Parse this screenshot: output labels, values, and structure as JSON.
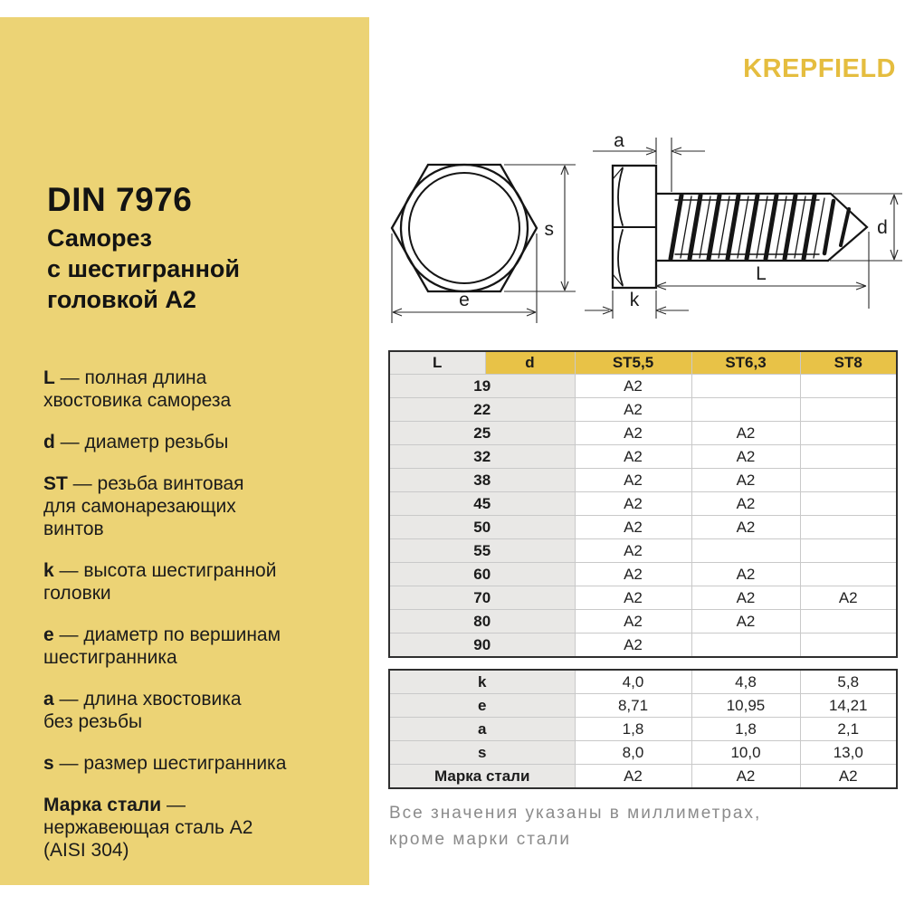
{
  "page": {
    "background": "#FFFFFF"
  },
  "brand": {
    "logo_text": "KREPFIELD",
    "logo_color": "#E5BD3F"
  },
  "sidebar": {
    "background_color": "#ECD375",
    "title": "DIN 7976",
    "subtitle_lines": [
      "Саморез",
      "с шестигранной",
      "головкой А2"
    ],
    "legend": [
      {
        "term": "L",
        "desc": " — полная длина\nхвостовика самореза"
      },
      {
        "term": "d",
        "desc": " — диаметр резьбы"
      },
      {
        "term": "ST",
        "desc": " — резьба винтовая\nдля самонарезающих\nвинтов"
      },
      {
        "term": "k",
        "desc": " — высота шестигранной\nголовки"
      },
      {
        "term": "e",
        "desc": " — диаметр по вершинам\nшестигранника"
      },
      {
        "term": "a",
        "desc": " — длина хвостовика\nбез резьбы"
      },
      {
        "term": "s",
        "desc": " — размер шестигранника"
      },
      {
        "term": "Марка стали",
        "desc": " —\nнержавеющая сталь А2\n(AISI 304)"
      }
    ]
  },
  "diagram": {
    "labels": {
      "s": "s",
      "e": "e",
      "a": "a",
      "k": "k",
      "d": "d",
      "L": "L"
    }
  },
  "table1": {
    "headers": [
      "L",
      "d",
      "ST5,5",
      "ST6,3",
      "ST8"
    ],
    "rows": [
      {
        "length": "19",
        "values": [
          "A2",
          "",
          ""
        ]
      },
      {
        "length": "22",
        "values": [
          "A2",
          "",
          ""
        ]
      },
      {
        "length": "25",
        "values": [
          "A2",
          "A2",
          ""
        ]
      },
      {
        "length": "32",
        "values": [
          "A2",
          "A2",
          ""
        ]
      },
      {
        "length": "38",
        "values": [
          "A2",
          "A2",
          ""
        ]
      },
      {
        "length": "45",
        "values": [
          "A2",
          "A2",
          ""
        ]
      },
      {
        "length": "50",
        "values": [
          "A2",
          "A2",
          ""
        ]
      },
      {
        "length": "55",
        "values": [
          "A2",
          "",
          ""
        ]
      },
      {
        "length": "60",
        "values": [
          "A2",
          "A2",
          ""
        ]
      },
      {
        "length": "70",
        "values": [
          "A2",
          "A2",
          "A2"
        ]
      },
      {
        "length": "80",
        "values": [
          "A2",
          "A2",
          ""
        ]
      },
      {
        "length": "90",
        "values": [
          "A2",
          "",
          ""
        ]
      }
    ]
  },
  "table2": {
    "rows": [
      {
        "label": "k",
        "values": [
          "4,0",
          "4,8",
          "5,8"
        ]
      },
      {
        "label": "e",
        "values": [
          "8,71",
          "10,95",
          "14,21"
        ]
      },
      {
        "label": "a",
        "values": [
          "1,8",
          "1,8",
          "2,1"
        ]
      },
      {
        "label": "s",
        "values": [
          "8,0",
          "10,0",
          "13,0"
        ]
      },
      {
        "label": "Марка стали",
        "values": [
          "A2",
          "A2",
          "A2"
        ]
      }
    ]
  },
  "footer": {
    "line1": "Все значения указаны в миллиметрах,",
    "line2": "кроме марки стали"
  },
  "colors": {
    "panel_yellow": "#ECD375",
    "accent_yellow": "#E8C247",
    "cell_gray": "#E9E8E6",
    "text_dark": "#161616",
    "note_gray": "#8B8B8B"
  }
}
